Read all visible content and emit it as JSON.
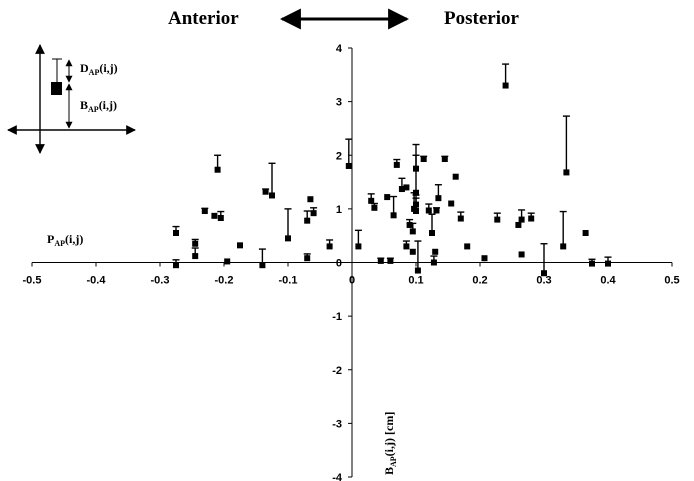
{
  "chart_data": {
    "type": "scatter",
    "direction_labels": {
      "left": "Anterior",
      "right": "Posterior"
    },
    "ylabel": "B",
    "ylabel_sub": "AP",
    "ylabel_tail": "(i,j)  [cm]",
    "side_label": {
      "main": "P",
      "sub": "AP",
      "tail": "(i,j)"
    },
    "legend_inset": {
      "d_label": {
        "main": "D",
        "sub": "AP",
        "tail": "(i,j)"
      },
      "b_label": {
        "main": "B",
        "sub": "AP",
        "tail": "(i,j)"
      }
    },
    "xlim": [
      -0.5,
      0.5
    ],
    "ylim": [
      -4,
      4
    ],
    "xticks": [
      "-0.5",
      "-0.4",
      "-0.3",
      "-0.2",
      "-0.1",
      "0",
      "0.1",
      "0.2",
      "0.3",
      "0.4",
      "0.5"
    ],
    "yticks": [
      "4",
      "3",
      "2",
      "1",
      "0",
      "-1",
      "-2",
      "-3",
      "-4"
    ],
    "grid": false,
    "points": [
      {
        "x": -0.275,
        "y": 0.55,
        "d": 0.12
      },
      {
        "x": -0.275,
        "y": -0.05,
        "d": 0.1
      },
      {
        "x": -0.245,
        "y": 0.12,
        "d": 0.15
      },
      {
        "x": -0.245,
        "y": 0.35,
        "d": 0.08
      },
      {
        "x": -0.23,
        "y": 0.96,
        "d": 0.05
      },
      {
        "x": -0.215,
        "y": 0.87,
        "d": 0.0
      },
      {
        "x": -0.21,
        "y": 1.73,
        "d": 0.27
      },
      {
        "x": -0.205,
        "y": 0.83,
        "d": 0.12
      },
      {
        "x": -0.195,
        "y": 0.02,
        "d": 0.0
      },
      {
        "x": -0.175,
        "y": 0.32,
        "d": 0.0
      },
      {
        "x": -0.14,
        "y": -0.05,
        "d": 0.3
      },
      {
        "x": -0.135,
        "y": 1.32,
        "d": 0.05
      },
      {
        "x": -0.125,
        "y": 1.25,
        "d": 0.6
      },
      {
        "x": -0.1,
        "y": 0.45,
        "d": 0.55
      },
      {
        "x": -0.07,
        "y": 0.08,
        "d": 0.08
      },
      {
        "x": -0.07,
        "y": 0.78,
        "d": 0.18
      },
      {
        "x": -0.065,
        "y": 1.18,
        "d": 0.0
      },
      {
        "x": -0.06,
        "y": 0.92,
        "d": 0.1
      },
      {
        "x": -0.035,
        "y": 0.3,
        "d": 0.12
      },
      {
        "x": -0.005,
        "y": 1.8,
        "d": 0.5
      },
      {
        "x": 0.01,
        "y": 0.3,
        "d": 0.3
      },
      {
        "x": 0.03,
        "y": 1.15,
        "d": 0.13
      },
      {
        "x": 0.035,
        "y": 1.02,
        "d": 0.08
      },
      {
        "x": 0.045,
        "y": 0.03,
        "d": 0.05
      },
      {
        "x": 0.055,
        "y": 1.22,
        "d": 0.0
      },
      {
        "x": 0.06,
        "y": 0.03,
        "d": 0.05
      },
      {
        "x": 0.065,
        "y": 0.88,
        "d": 0.35
      },
      {
        "x": 0.07,
        "y": 1.82,
        "d": 0.1
      },
      {
        "x": 0.078,
        "y": 1.37,
        "d": 0.2
      },
      {
        "x": 0.085,
        "y": 0.3,
        "d": 0.1
      },
      {
        "x": 0.085,
        "y": 1.4,
        "d": 0.0
      },
      {
        "x": 0.09,
        "y": 0.7,
        "d": 0.1
      },
      {
        "x": 0.095,
        "y": 0.2,
        "d": 0.0
      },
      {
        "x": 0.095,
        "y": 0.58,
        "d": 0.15
      },
      {
        "x": 0.097,
        "y": 1.0,
        "d": 0.3
      },
      {
        "x": 0.1,
        "y": 1.3,
        "d": 0.9
      },
      {
        "x": 0.1,
        "y": 1.75,
        "d": 0.25
      },
      {
        "x": 0.1,
        "y": 0.96,
        "d": 0.3
      },
      {
        "x": 0.1,
        "y": 1.08,
        "d": 0.12
      },
      {
        "x": 0.103,
        "y": -0.15,
        "d": 0.55
      },
      {
        "x": 0.112,
        "y": 1.93,
        "d": 0.05
      },
      {
        "x": 0.12,
        "y": 0.97,
        "d": 0.12
      },
      {
        "x": 0.125,
        "y": 0.55,
        "d": 0.35
      },
      {
        "x": 0.128,
        "y": 0.0,
        "d": 0.12
      },
      {
        "x": 0.13,
        "y": 0.2,
        "d": 0.0
      },
      {
        "x": 0.132,
        "y": 0.97,
        "d": 0.05
      },
      {
        "x": 0.135,
        "y": 1.2,
        "d": 0.25
      },
      {
        "x": 0.145,
        "y": 1.93,
        "d": 0.05
      },
      {
        "x": 0.155,
        "y": 1.1,
        "d": 0.0
      },
      {
        "x": 0.162,
        "y": 1.6,
        "d": 0.0
      },
      {
        "x": 0.17,
        "y": 0.82,
        "d": 0.12
      },
      {
        "x": 0.18,
        "y": 0.3,
        "d": 0.0
      },
      {
        "x": 0.207,
        "y": 0.08,
        "d": 0.0
      },
      {
        "x": 0.227,
        "y": 0.8,
        "d": 0.12
      },
      {
        "x": 0.24,
        "y": 3.3,
        "d": 0.4
      },
      {
        "x": 0.26,
        "y": 0.7,
        "d": 0.0
      },
      {
        "x": 0.265,
        "y": 0.8,
        "d": 0.18
      },
      {
        "x": 0.265,
        "y": 0.15,
        "d": 0.0
      },
      {
        "x": 0.28,
        "y": 0.82,
        "d": 0.1
      },
      {
        "x": 0.3,
        "y": -0.2,
        "d": 0.55
      },
      {
        "x": 0.33,
        "y": 0.3,
        "d": 0.65
      },
      {
        "x": 0.335,
        "y": 1.68,
        "d": 1.05
      },
      {
        "x": 0.365,
        "y": 0.55,
        "d": 0.0
      },
      {
        "x": 0.375,
        "y": -0.02,
        "d": 0.08
      },
      {
        "x": 0.4,
        "y": -0.02,
        "d": 0.12
      }
    ]
  }
}
